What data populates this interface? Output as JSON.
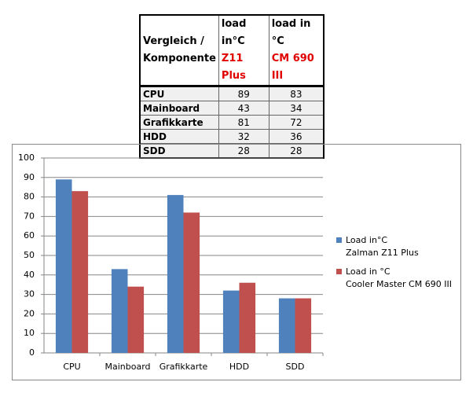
{
  "table": {
    "header": [
      [
        "Vergleich /",
        "Komponente"
      ],
      [
        "load in°C",
        "Z11 Plus"
      ],
      [
        "load in °C",
        "CM 690 III"
      ]
    ],
    "rows": [
      [
        "CPU",
        89,
        83
      ],
      [
        "Mainboard",
        43,
        34
      ],
      [
        "Grafikkarte",
        81,
        72
      ],
      [
        "HDD",
        32,
        36
      ],
      [
        "SDD",
        28,
        28
      ]
    ]
  },
  "chart_data": {
    "type": "bar",
    "categories": [
      "CPU",
      "Mainboard",
      "Grafikkarte",
      "HDD",
      "SDD"
    ],
    "series": [
      {
        "name": "Load in°C\nZalman Z11 Plus",
        "color": "#4f81bd",
        "values": [
          89,
          43,
          81,
          32,
          28
        ]
      },
      {
        "name": "Load in °C\nCooler Master CM 690 III",
        "color": "#c0504d",
        "values": [
          83,
          34,
          72,
          36,
          28
        ]
      }
    ],
    "ylim": [
      0,
      100
    ],
    "yticks": [
      0,
      10,
      20,
      30,
      40,
      50,
      60,
      70,
      80,
      90,
      100
    ],
    "grid": true,
    "legend": "right"
  }
}
